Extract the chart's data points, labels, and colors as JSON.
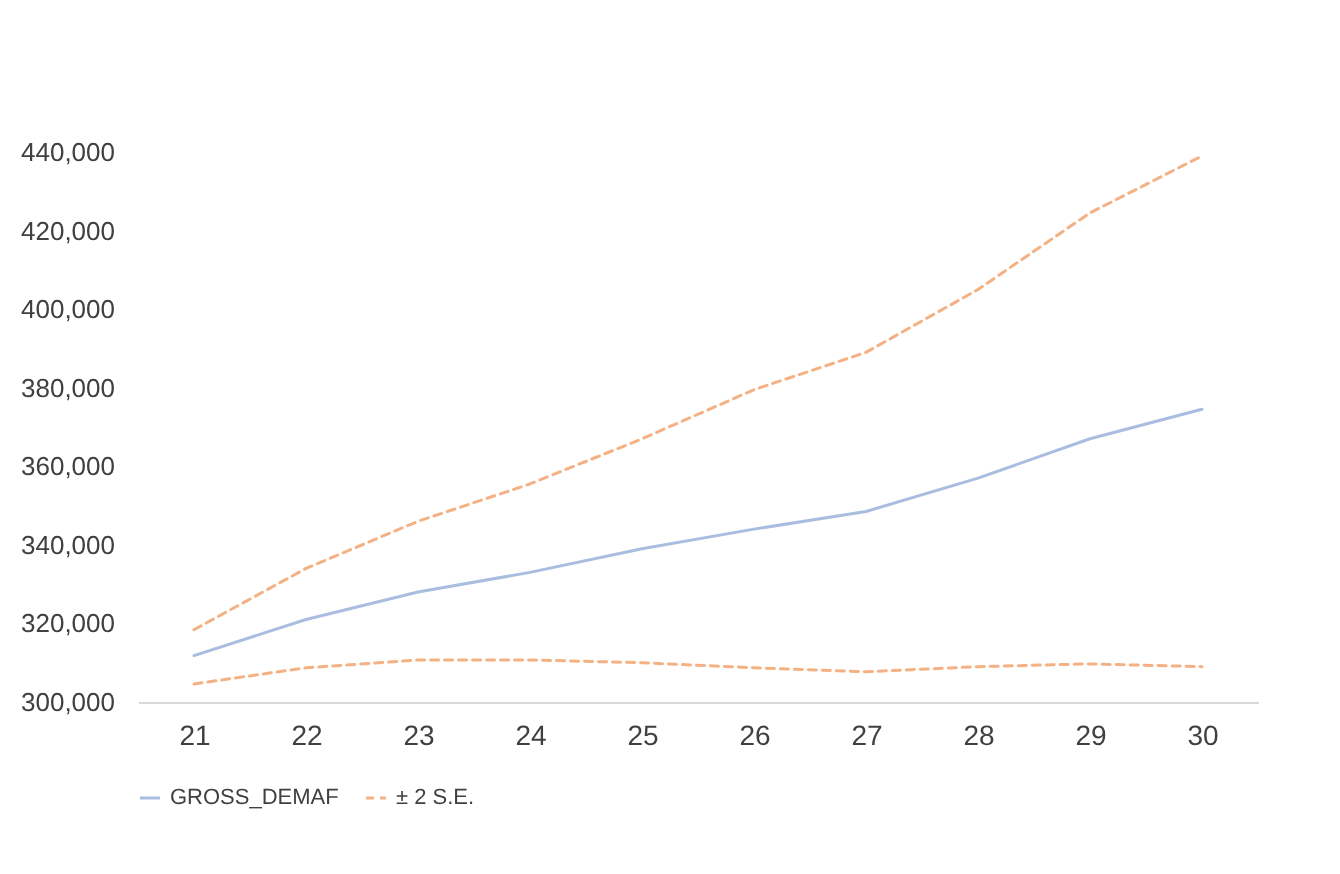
{
  "chart_data": {
    "type": "line",
    "categories": [
      "21",
      "22",
      "23",
      "24",
      "25",
      "26",
      "27",
      "28",
      "29",
      "30"
    ],
    "series": [
      {
        "name": "GROSS_DEMAF",
        "color": "#a9bde0",
        "values": [
          311800,
          321000,
          328000,
          333000,
          339000,
          344000,
          348500,
          357000,
          367000,
          374500
        ]
      },
      {
        "name": "± 2 S.E.",
        "color": "#f4b183",
        "line_style": "dashed",
        "values": [
          318400,
          334000,
          346000,
          355500,
          367000,
          379500,
          389000,
          405000,
          424500,
          439000
        ]
      },
      {
        "color": "#f4b183",
        "line_style": "dashed",
        "values": [
          304600,
          308700,
          310700,
          310700,
          310000,
          308700,
          307700,
          309000,
          309700,
          309000
        ]
      }
    ],
    "ylim": [
      300000,
      440000
    ],
    "yticks": [
      {
        "value": 300000,
        "label": "300,000"
      },
      {
        "value": 320000,
        "label": "320,000"
      },
      {
        "value": 340000,
        "label": "340,000"
      },
      {
        "value": 360000,
        "label": "360,000"
      },
      {
        "value": 380000,
        "label": "380,000"
      },
      {
        "value": 400000,
        "label": "400,000"
      },
      {
        "value": 420000,
        "label": "420,000"
      },
      {
        "value": 440000,
        "label": "440,000"
      }
    ],
    "grid": false,
    "legend": "bottom"
  }
}
